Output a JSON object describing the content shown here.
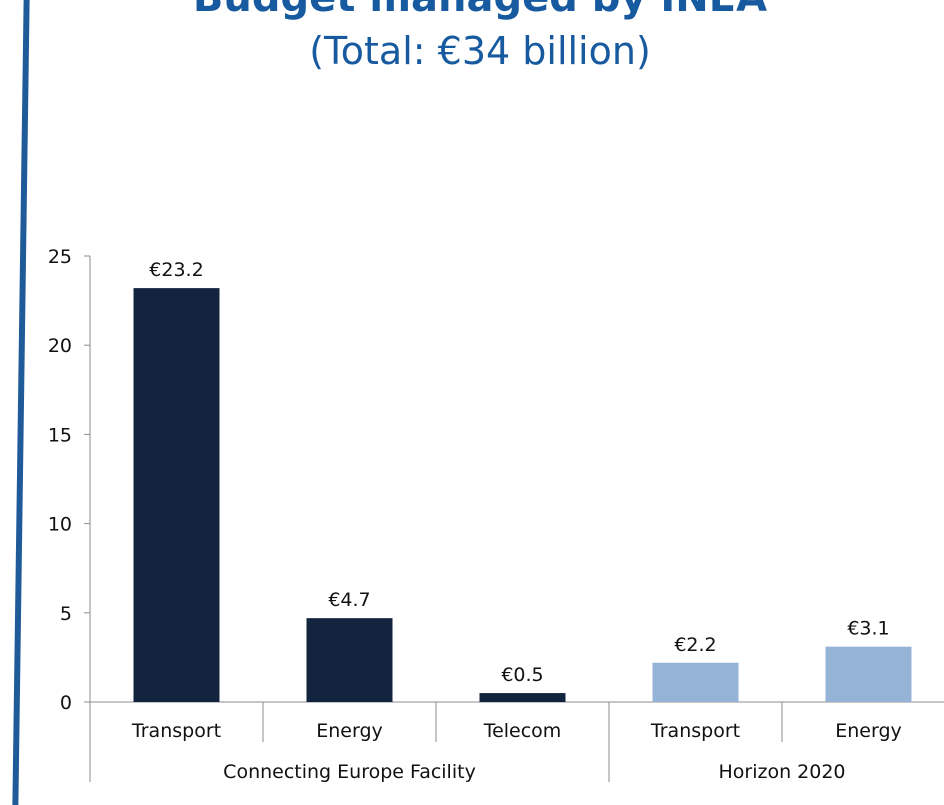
{
  "title": "Budget managed by INEA",
  "subtitle": "(Total: €34 billion)",
  "colors": {
    "title": "#175a9f",
    "cef_bar": "#13243f",
    "h2020_bar": "#95b3d7",
    "left_rule": "#1f5a99"
  },
  "chart_data": {
    "type": "bar",
    "groups": [
      {
        "label": "Connecting Europe Facility",
        "categories": [
          "Transport",
          "Energy",
          "Telecom"
        ],
        "values": [
          23.2,
          4.7,
          0.5
        ],
        "data_labels": [
          "€23.2",
          "€4.7",
          "€0.5"
        ],
        "color": "#13243f"
      },
      {
        "label": "Horizon 2020",
        "categories": [
          "Transport",
          "Energy"
        ],
        "values": [
          2.2,
          3.1
        ],
        "data_labels": [
          "€2.2",
          "€3.1"
        ],
        "color": "#95b3d7"
      }
    ],
    "ylim": [
      0,
      25
    ],
    "yticks": [
      0,
      5,
      10,
      15,
      20,
      25
    ],
    "xlabel": "",
    "ylabel": "",
    "grid": false,
    "legend": "none"
  }
}
